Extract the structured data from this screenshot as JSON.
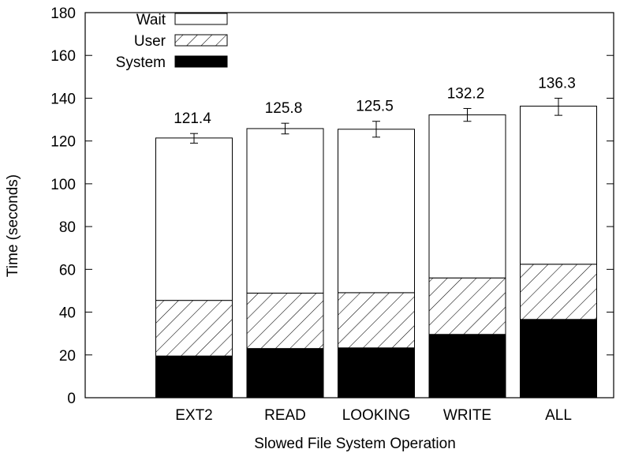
{
  "chart_data": {
    "type": "bar",
    "stacked": true,
    "title": "",
    "xlabel": "Slowed File System Operation",
    "ylabel": "Time (seconds)",
    "ylim": [
      0,
      180
    ],
    "yticks": [
      0,
      20,
      40,
      60,
      80,
      100,
      120,
      140,
      160,
      180
    ],
    "categories": [
      "EXT2",
      "READ",
      "LOOKING",
      "WRITE",
      "ALL"
    ],
    "series": [
      {
        "name": "System",
        "values": [
          19.5,
          23.0,
          23.3,
          29.6,
          36.6
        ],
        "fill": "#000000"
      },
      {
        "name": "User",
        "values": [
          26.0,
          25.9,
          25.8,
          26.4,
          25.8
        ],
        "fill": "hatched"
      },
      {
        "name": "Wait",
        "values": [
          75.9,
          76.9,
          76.4,
          76.2,
          73.9
        ],
        "fill": "#ffffff"
      }
    ],
    "totals": [
      121.4,
      125.8,
      125.5,
      132.2,
      136.3
    ],
    "total_labels": [
      "121.4",
      "125.8",
      "125.5",
      "132.2",
      "136.3"
    ],
    "error_bars": [
      {
        "low": 119.0,
        "high": 123.5
      },
      {
        "low": 123.3,
        "high": 128.3
      },
      {
        "low": 121.8,
        "high": 129.2
      },
      {
        "low": 129.2,
        "high": 135.2
      },
      {
        "low": 132.0,
        "high": 140.0
      }
    ],
    "legend": {
      "position": "top-left",
      "order": [
        "Wait",
        "User",
        "System"
      ]
    },
    "grid": false,
    "colors": {
      "system": "#000000",
      "wait": "#ffffff",
      "user_hatch": "#000000",
      "axis": "#000000"
    }
  }
}
